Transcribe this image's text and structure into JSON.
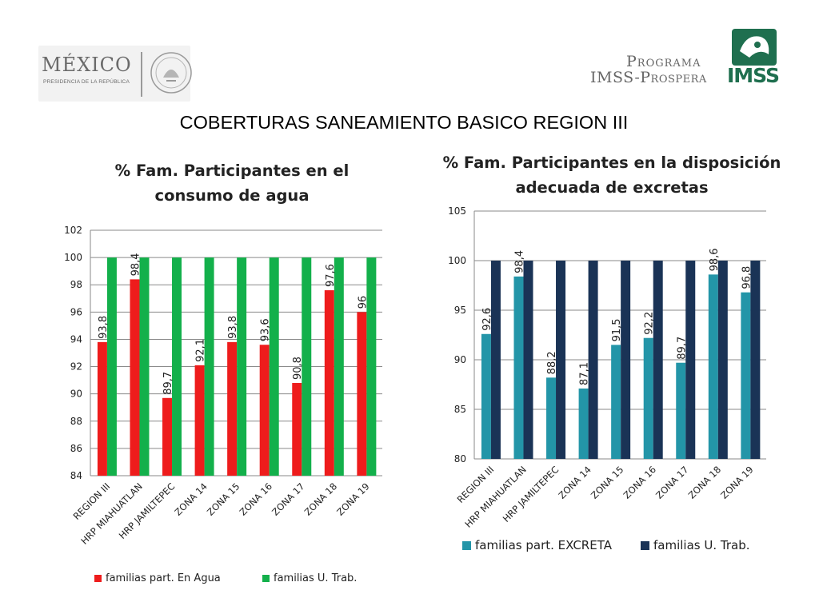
{
  "header": {
    "mexico_logo": {
      "name": "MÉXICO",
      "subtitle": "PRESIDENCIA DE LA REPÚBLICA"
    },
    "imss_logo": {
      "line1": "Programa",
      "line2": "IMSS-Prospera",
      "brand": "IMSS"
    }
  },
  "page_title": "COBERTURAS SANEAMIENTO BASICO REGION III",
  "colors": {
    "red": "#ee1c1c",
    "green": "#13b04b",
    "teal": "#2395a8",
    "navy": "#1a3356",
    "imss_green": "#1f6f4f"
  },
  "chart_data": [
    {
      "type": "bar",
      "title": "% Fam. Participantes en el consumo de agua",
      "categories": [
        "REGION III",
        "HRP MIAHUATLAN",
        "HRP JAMILTEPEC",
        "ZONA 14",
        "ZONA 15",
        "ZONA 16",
        "ZONA 17",
        "ZONA 18",
        "ZONA 19"
      ],
      "series": [
        {
          "name": "familias part. En Agua",
          "values": [
            93.8,
            98.4,
            89.7,
            92.1,
            93.8,
            93.6,
            90.8,
            97.6,
            96
          ],
          "labels": [
            "93,8",
            "98,4",
            "89,7",
            "92,1",
            "93,8",
            "93,6",
            "90,8",
            "97,6",
            "96"
          ],
          "color": "#ee1c1c"
        },
        {
          "name": "familias U. Trab.",
          "values": [
            100,
            100,
            100,
            100,
            100,
            100,
            100,
            100,
            100
          ],
          "color": "#13b04b"
        }
      ],
      "ylim": [
        84,
        102
      ],
      "yticks": [
        84,
        86,
        88,
        90,
        92,
        94,
        96,
        98,
        100,
        102
      ],
      "grid": true,
      "legend": "bottom"
    },
    {
      "type": "bar",
      "title": "% Fam. Participantes en la disposición adecuada de excretas",
      "categories": [
        "REGION III",
        "HRP MIAHUATLAN",
        "HRP JAMILTEPEC",
        "ZONA 14",
        "ZONA 15",
        "ZONA 16",
        "ZONA 17",
        "ZONA 18",
        "ZONA 19"
      ],
      "series": [
        {
          "name": "familias part. EXCRETA",
          "values": [
            92.6,
            98.4,
            88.2,
            87.1,
            91.5,
            92.2,
            89.7,
            98.6,
            96.8
          ],
          "labels": [
            "92,6",
            "98,4",
            "88,2",
            "87,1",
            "91,5",
            "92,2",
            "89,7",
            "98,6",
            "96,8"
          ],
          "color": "#2395a8"
        },
        {
          "name": "familias U. Trab.",
          "values": [
            100,
            100,
            100,
            100,
            100,
            100,
            100,
            100,
            100
          ],
          "color": "#1a3356"
        }
      ],
      "ylim": [
        80,
        105
      ],
      "yticks": [
        80,
        85,
        90,
        95,
        100,
        105
      ],
      "grid": true,
      "legend": "bottom"
    }
  ]
}
